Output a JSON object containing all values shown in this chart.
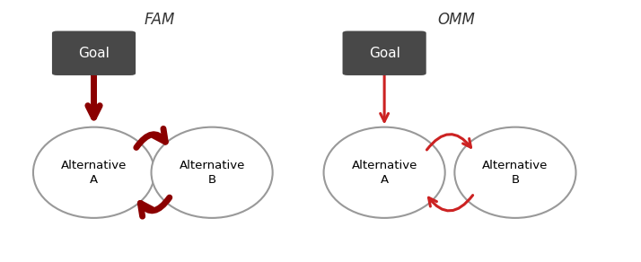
{
  "background_color": "#ffffff",
  "fam_title": "FAM",
  "omm_title": "OMM",
  "title_fontstyle": "italic",
  "title_fontsize": 12,
  "goal_box_color": "#484848",
  "goal_text_color": "#ffffff",
  "goal_text": "Goal",
  "alt_a_text": "Alternative\nA",
  "alt_b_text": "Alternative\nB",
  "ellipse_edge_color": "#999999",
  "fam_arrow_color": "#8b0000",
  "omm_arrow_color": "#cc2222",
  "fam_lw": 5.0,
  "omm_lw": 2.2,
  "fam_mutation_scale": 24,
  "omm_mutation_scale": 16
}
